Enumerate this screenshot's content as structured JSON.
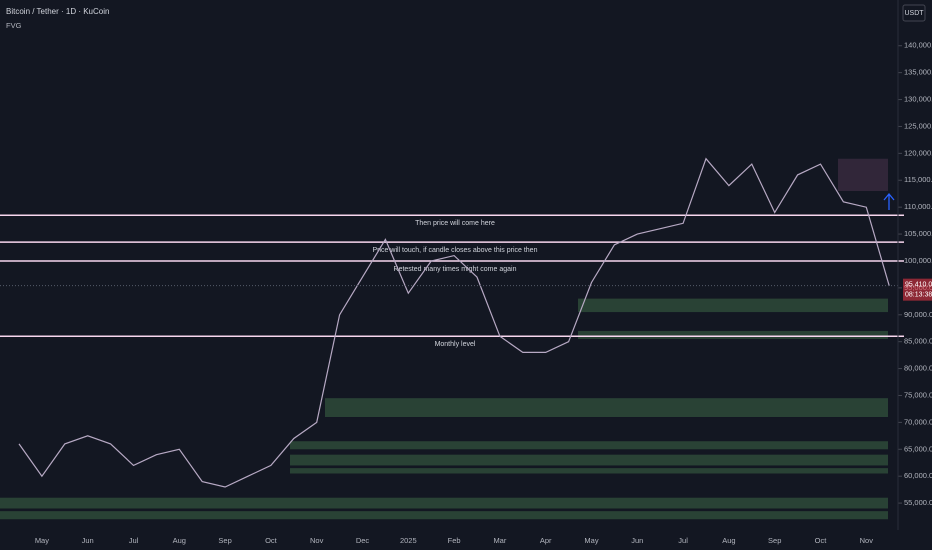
{
  "header": {
    "symbol": "Bitcoin / Tether · 1D · KuCoin",
    "indicator": "FVG",
    "currency": "USDT"
  },
  "chart_data": {
    "type": "line",
    "categories": [
      null,
      "May",
      null,
      "Jun",
      null,
      "Jul",
      null,
      "Aug",
      null,
      "Sep",
      null,
      "Oct",
      null,
      "Nov",
      null,
      "Dec",
      null,
      "2025",
      null,
      "Feb",
      null,
      "Mar",
      null,
      "Apr",
      null,
      "May",
      null,
      "Jun",
      null,
      "Jul",
      null,
      "Aug",
      null,
      "Sep",
      null,
      "Oct",
      null,
      "Nov",
      null
    ],
    "values": [
      66000,
      60000,
      66000,
      67500,
      66000,
      62000,
      64000,
      65000,
      59000,
      58000,
      60000,
      62000,
      67000,
      70000,
      90000,
      97000,
      104000,
      94000,
      100000,
      101000,
      97000,
      86000,
      83000,
      83000,
      85000,
      96000,
      103000,
      105000,
      106000,
      107000,
      119000,
      114000,
      118000,
      109000,
      116000,
      118000,
      111000,
      110000,
      95410
    ],
    "color": "#b7a9c4",
    "ylim": [
      50000,
      148500
    ],
    "yticks": [
      {
        "value": 55000,
        "label": "55,000.0"
      },
      {
        "value": 60000,
        "label": "60,000.0"
      },
      {
        "value": 65000,
        "label": "65,000.0"
      },
      {
        "value": 70000,
        "label": "70,000.0"
      },
      {
        "value": 75000,
        "label": "75,000.0"
      },
      {
        "value": 80000,
        "label": "80,000.0"
      },
      {
        "value": 85000,
        "label": "85,000.0"
      },
      {
        "value": 90000,
        "label": "90,000.0"
      },
      {
        "value": 95000,
        "label": "95,000.0"
      },
      {
        "value": 100000,
        "label": "100,000.0"
      },
      {
        "value": 105000,
        "label": "105,000.0"
      },
      {
        "value": 110000,
        "label": "110,000.0"
      },
      {
        "value": 115000,
        "label": "115,000.0"
      },
      {
        "value": 120000,
        "label": "120,000.0"
      },
      {
        "value": 125000,
        "label": "125,000.0"
      },
      {
        "value": 130000,
        "label": "130,000.0"
      },
      {
        "value": 135000,
        "label": "135,000.0"
      },
      {
        "value": 140000,
        "label": "140,000.0"
      }
    ],
    "levels": [
      {
        "value": 108500,
        "label": "Then price will come here"
      },
      {
        "value": 103500,
        "label": "Price will touch, if candle closes above this price then"
      },
      {
        "value": 100000,
        "label": "Retested many times might come again"
      },
      {
        "value": 86000,
        "label": "Monthly level"
      }
    ],
    "level_color": "#f8d7ef",
    "zones": [
      {
        "low": 90500,
        "high": 93000
      },
      {
        "low": 85500,
        "high": 87000
      },
      {
        "low": 71000,
        "high": 74500
      },
      {
        "low": 65000,
        "high": 66500
      },
      {
        "low": 62000,
        "high": 64000
      },
      {
        "low": 60500,
        "high": 61500
      },
      {
        "low": 54000,
        "high": 56000
      },
      {
        "low": 52000,
        "high": 53500
      }
    ],
    "zone_color": "#2e4a38",
    "supply_zone": {
      "low": 113000,
      "high": 119000
    },
    "supply_color": "#3a2a40",
    "last_price": {
      "value": 95410,
      "label": "95,410.0"
    },
    "countdown": "08:13:38"
  }
}
